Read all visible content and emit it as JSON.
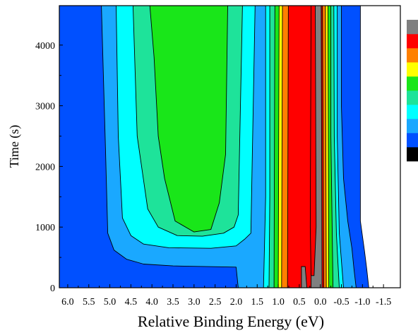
{
  "chart_data": {
    "type": "heatmap",
    "title": "",
    "xlabel": "Relative Binding Energy (eV)",
    "ylabel": "Time (s)",
    "x_axis_reversed": true,
    "xlim": [
      6.2,
      -1.9
    ],
    "ylim": [
      0,
      4650
    ],
    "x_ticks": [
      6.0,
      5.5,
      5.0,
      4.5,
      4.0,
      3.5,
      3.0,
      2.5,
      2.0,
      1.5,
      1.0,
      0.5,
      0.0,
      -0.5,
      -1.0,
      -1.5
    ],
    "x_tick_labels": [
      "6.0",
      "5.5",
      "5.0",
      "4.5",
      "4.0",
      "3.5",
      "3.0",
      "2.5",
      "2.0",
      "1.5",
      "1.0",
      "0.5",
      "0.0",
      "-0.5",
      "-1.0",
      "-1.5"
    ],
    "y_ticks": [
      0,
      1000,
      2000,
      3000,
      4000
    ],
    "y_tick_labels": [
      "0",
      "1000",
      "2000",
      "3000",
      "4000"
    ],
    "grid": false,
    "colorbar": {
      "placement": "right",
      "colors": [
        "#000000",
        "#0050ff",
        "#1aa8ff",
        "#00ffff",
        "#1ee39a",
        "#19e619",
        "#ffff00",
        "#ff8000",
        "#ff0000",
        "#808080"
      ]
    },
    "contour_levels": [
      {
        "level": 1,
        "color": "#0050ff",
        "polygon": [
          [
            6.2,
            0
          ],
          [
            6.2,
            4650
          ],
          [
            -0.95,
            4650
          ],
          [
            -0.95,
            1100
          ],
          [
            -1.05,
            600
          ],
          [
            -1.1,
            320
          ],
          [
            -1.15,
            0
          ]
        ]
      },
      {
        "level": 2,
        "color": "#1aa8ff",
        "polygon": [
          [
            5.2,
            4650
          ],
          [
            5.1,
            2200
          ],
          [
            5.05,
            900
          ],
          [
            4.9,
            620
          ],
          [
            4.6,
            470
          ],
          [
            4.2,
            390
          ],
          [
            3.5,
            360
          ],
          [
            2.0,
            340
          ],
          [
            1.95,
            0
          ],
          [
            -0.85,
            0
          ],
          [
            -0.8,
            300
          ],
          [
            -0.75,
            650
          ],
          [
            -0.65,
            1100
          ],
          [
            -0.55,
            1800
          ],
          [
            -0.5,
            3000
          ],
          [
            -0.5,
            4650
          ]
        ]
      },
      {
        "level": 3,
        "color": "#00ffff",
        "polygon": [
          [
            4.85,
            4650
          ],
          [
            4.8,
            2500
          ],
          [
            4.7,
            1150
          ],
          [
            4.5,
            860
          ],
          [
            4.2,
            720
          ],
          [
            3.6,
            660
          ],
          [
            2.6,
            650
          ],
          [
            2.0,
            690
          ],
          [
            1.8,
            800
          ],
          [
            1.65,
            900
          ],
          [
            1.55,
            4650
          ]
        ]
      },
      {
        "level": 3,
        "color": "#00ffff",
        "polygon": [
          [
            1.35,
            0
          ],
          [
            1.3,
            1500
          ],
          [
            1.3,
            4650
          ],
          [
            -0.4,
            4650
          ],
          [
            -0.4,
            2500
          ],
          [
            -0.45,
            900
          ],
          [
            -0.55,
            0
          ]
        ]
      },
      {
        "level": 4,
        "color": "#1ee39a",
        "polygon": [
          [
            4.45,
            4650
          ],
          [
            4.35,
            2500
          ],
          [
            4.1,
            1300
          ],
          [
            3.85,
            1000
          ],
          [
            3.4,
            860
          ],
          [
            2.8,
            850
          ],
          [
            2.3,
            900
          ],
          [
            2.05,
            1000
          ],
          [
            1.95,
            1200
          ],
          [
            1.85,
            4650
          ]
        ]
      },
      {
        "level": 4,
        "color": "#1ee39a",
        "polygon": [
          [
            1.22,
            0
          ],
          [
            1.2,
            1500
          ],
          [
            1.2,
            4650
          ],
          [
            -0.32,
            4650
          ],
          [
            -0.33,
            2500
          ],
          [
            -0.38,
            900
          ],
          [
            -0.45,
            0
          ]
        ]
      },
      {
        "level": 5,
        "color": "#19e619",
        "polygon": [
          [
            4.05,
            4650
          ],
          [
            3.95,
            3800
          ],
          [
            3.85,
            2500
          ],
          [
            3.7,
            1800
          ],
          [
            3.45,
            1100
          ],
          [
            3.0,
            920
          ],
          [
            2.6,
            960
          ],
          [
            2.4,
            1400
          ],
          [
            2.25,
            2200
          ],
          [
            2.2,
            4650
          ]
        ]
      },
      {
        "level": 5,
        "color": "#19e619",
        "polygon": [
          [
            1.1,
            0
          ],
          [
            1.08,
            4650
          ],
          [
            -0.25,
            4650
          ],
          [
            -0.25,
            2500
          ],
          [
            -0.3,
            0
          ]
        ]
      },
      {
        "level": 6,
        "color": "#ffff00",
        "polygon": [
          [
            1.0,
            0
          ],
          [
            0.98,
            4650
          ],
          [
            -0.18,
            4650
          ],
          [
            -0.2,
            0
          ]
        ]
      },
      {
        "level": 7,
        "color": "#ff8000",
        "polygon": [
          [
            0.92,
            0
          ],
          [
            0.9,
            4650
          ],
          [
            -0.12,
            4650
          ],
          [
            -0.14,
            0
          ]
        ]
      },
      {
        "level": 8,
        "color": "#ff0000",
        "polygon": [
          [
            0.78,
            0
          ],
          [
            0.76,
            4650
          ],
          [
            -0.05,
            4650
          ],
          [
            -0.08,
            0
          ]
        ]
      },
      {
        "level": 9,
        "color": "#808080",
        "polygon": [
          [
            0.22,
            0
          ],
          [
            0.2,
            4650
          ],
          [
            -0.02,
            4650
          ],
          [
            -0.04,
            0
          ]
        ]
      },
      {
        "level": 8,
        "color": "#ff0000",
        "polygon": [
          [
            0.12,
            4650
          ],
          [
            0.1,
            1000
          ],
          [
            0.15,
            200
          ],
          [
            0.22,
            200
          ],
          [
            0.24,
            1000
          ],
          [
            0.22,
            4650
          ]
        ]
      },
      {
        "level": 9,
        "color": "#808080",
        "polygon": [
          [
            0.45,
            0
          ],
          [
            0.45,
            350
          ],
          [
            0.36,
            350
          ],
          [
            0.32,
            0
          ]
        ]
      }
    ]
  }
}
